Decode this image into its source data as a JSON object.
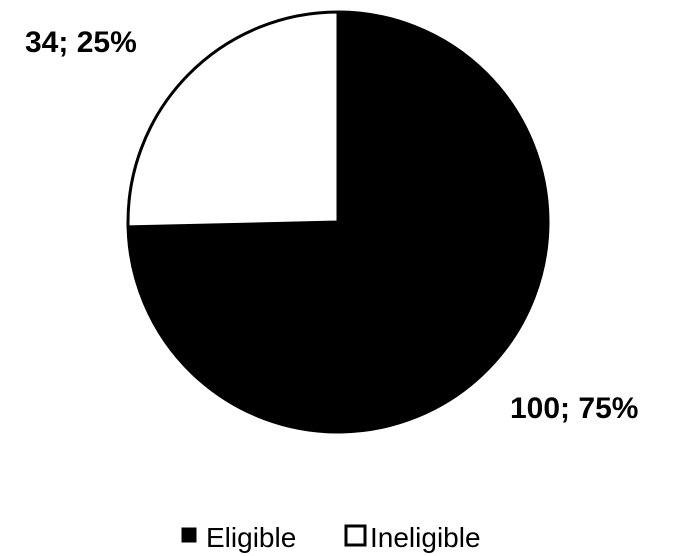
{
  "chart_data": {
    "type": "pie",
    "title": "",
    "series": [
      {
        "values": [
          100,
          34
        ],
        "categories": [
          "Eligible",
          "Ineligible"
        ]
      }
    ],
    "slices": [
      {
        "label": "Eligible",
        "value": 100,
        "percent": 75,
        "data_label": "100; 75%",
        "color": "#000000"
      },
      {
        "label": "Ineligible",
        "value": 34,
        "percent": 25,
        "data_label": "34; 25%",
        "color": "#ffffff"
      }
    ],
    "legend": {
      "position": "bottom",
      "items": [
        "Eligible",
        "Ineligible"
      ]
    },
    "start_angle": "12 o'clock",
    "direction": "clockwise",
    "edge_color": "#000000"
  }
}
